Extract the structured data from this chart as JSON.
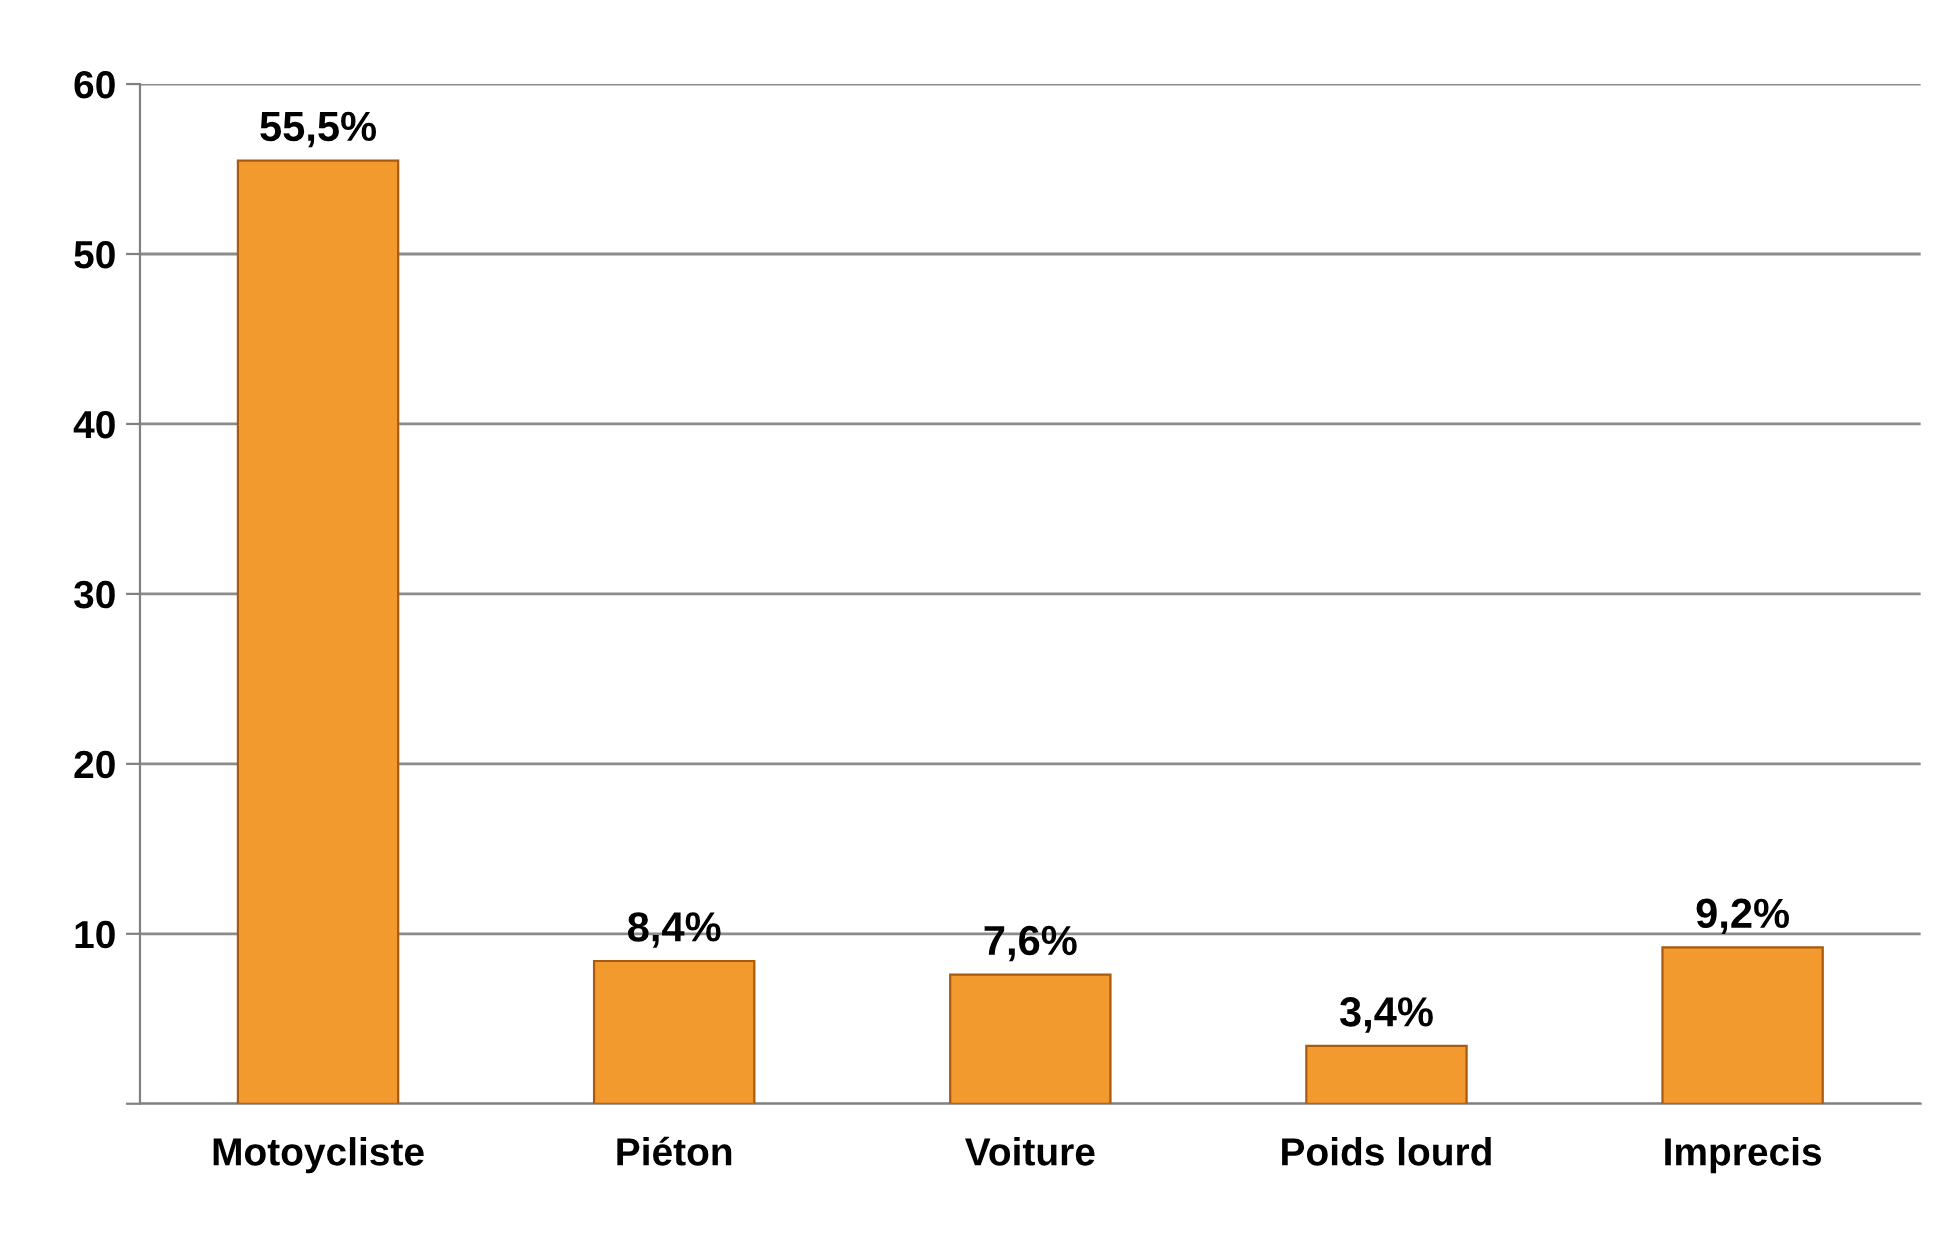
{
  "chart_data": {
    "type": "bar",
    "categories": [
      "Motoycliste",
      "Piéton",
      "Voiture",
      "Poids lourd",
      "Imprecis"
    ],
    "values": [
      55.5,
      8.4,
      7.6,
      3.4,
      9.2
    ],
    "value_labels": [
      "55,5%",
      "8,4%",
      "7,6%",
      "3,4%",
      "9,2%"
    ],
    "color": "#f39a2e",
    "ylim": [
      0,
      60
    ],
    "yticks": [
      {
        "value": 0,
        "label": null
      },
      10,
      20,
      30,
      40,
      50,
      60
    ],
    "grid": "y"
  }
}
